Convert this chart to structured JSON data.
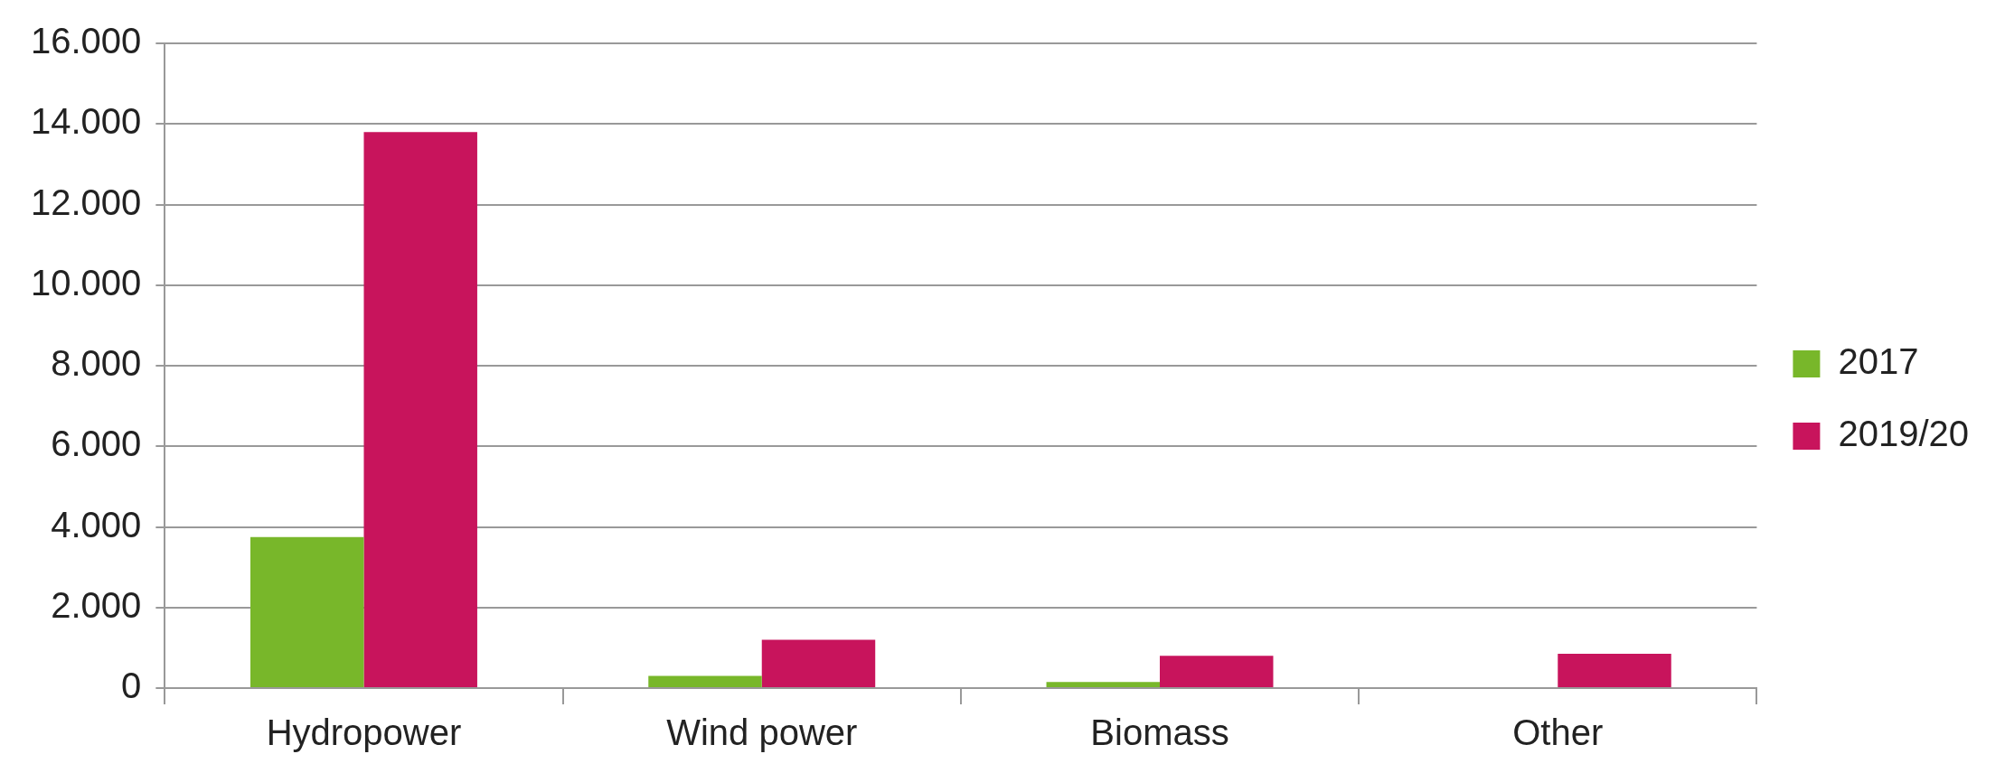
{
  "chart_data": {
    "type": "bar",
    "categories": [
      "Hydropower",
      "Wind power",
      "Biomass",
      "Other"
    ],
    "series": [
      {
        "name": "2017",
        "color": "#78b72a",
        "values": [
          3750,
          300,
          150,
          0
        ]
      },
      {
        "name": "2019/20",
        "color": "#c8145c",
        "values": [
          13800,
          1200,
          800,
          850
        ]
      }
    ],
    "ylim": [
      0,
      16000
    ],
    "yticks": [
      {
        "value": 0,
        "label": "0"
      },
      {
        "value": 2000,
        "label": "2.000"
      },
      {
        "value": 4000,
        "label": "4.000"
      },
      {
        "value": 6000,
        "label": "6.000"
      },
      {
        "value": 8000,
        "label": "8.000"
      },
      {
        "value": 10000,
        "label": "10.000"
      },
      {
        "value": 12000,
        "label": "12.000"
      },
      {
        "value": 14000,
        "label": "14.000"
      },
      {
        "value": 16000,
        "label": "16.000"
      }
    ],
    "grid": "y",
    "legend": "right"
  }
}
